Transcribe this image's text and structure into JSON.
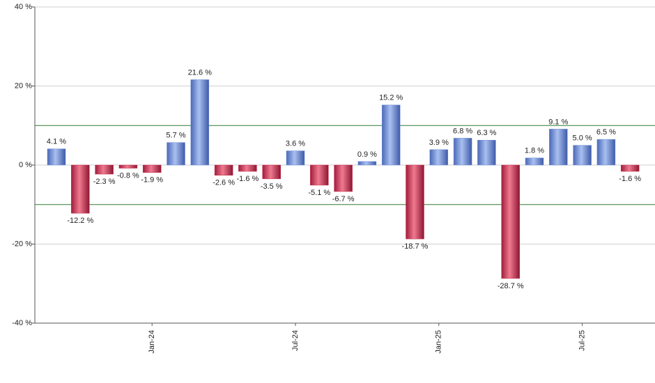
{
  "chart_data": {
    "type": "bar",
    "categories": [
      null,
      null,
      null,
      null,
      "Jan-24",
      null,
      null,
      null,
      null,
      null,
      "Jul-24",
      null,
      null,
      null,
      null,
      null,
      "Jan-25",
      null,
      null,
      null,
      null,
      null,
      "Jul-25",
      null,
      null
    ],
    "values": [
      4.1,
      -12.2,
      -2.3,
      -0.8,
      -1.9,
      5.7,
      21.6,
      -2.6,
      -1.6,
      -3.5,
      3.6,
      -5.1,
      -6.7,
      0.9,
      15.2,
      -18.7,
      3.9,
      6.8,
      6.3,
      -28.7,
      1.8,
      9.1,
      5.0,
      6.5,
      -1.6
    ],
    "value_labels": [
      "4.1 %",
      "-12.2 %",
      "-2.3 %",
      "-0.8 %",
      "-1.9 %",
      "5.7 %",
      "21.6 %",
      "-2.6 %",
      "-1.6 %",
      "-3.5 %",
      "3.6 %",
      "-5.1 %",
      "-6.7 %",
      "0.9 %",
      "15.2 %",
      "-18.7 %",
      "3.9 %",
      "6.8 %",
      "6.3 %",
      "-28.7 %",
      "1.8 %",
      "9.1 %",
      "5.0 %",
      "6.5 %",
      "-1.6 %"
    ],
    "positive_color": "#6f8fd8",
    "negative_color": "#c8304f",
    "ylim": [
      -40,
      40
    ],
    "yticks": [
      {
        "value": -40,
        "label": "-40 %"
      },
      {
        "value": -20,
        "label": "-20 %"
      },
      {
        "value": 0,
        "label": "0 %"
      },
      {
        "value": 20,
        "label": "20 %"
      },
      {
        "value": 40,
        "label": "40 %"
      }
    ],
    "reference_lines": [
      10,
      -10
    ],
    "reference_color": "#2e7d32",
    "grid": true
  }
}
